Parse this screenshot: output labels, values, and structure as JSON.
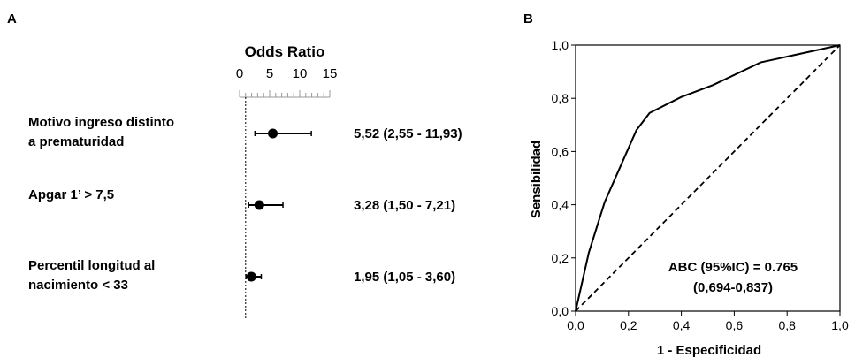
{
  "panels": {
    "a_label": "A",
    "b_label": "B"
  },
  "chart_data": [
    {
      "type": "forest",
      "title": "Odds Ratio",
      "xticks": [
        "0",
        "5",
        "10",
        "15"
      ],
      "xlim": [
        0,
        15
      ],
      "reference_line": 1,
      "rows": [
        {
          "label_lines": [
            "Motivo ingreso distinto",
            "a prematuridad"
          ],
          "or": 5.52,
          "ci_low": 2.55,
          "ci_high": 11.93,
          "text": "5,52 (2,55 - 11,93)"
        },
        {
          "label_lines": [
            "Apgar 1’ > 7,5"
          ],
          "or": 3.28,
          "ci_low": 1.5,
          "ci_high": 7.21,
          "text": "3,28 (1,50 - 7,21)"
        },
        {
          "label_lines": [
            "Percentil longitud al",
            "nacimiento < 33"
          ],
          "or": 1.95,
          "ci_low": 1.05,
          "ci_high": 3.6,
          "text": "1,95 (1,05 - 3,60)"
        }
      ]
    },
    {
      "type": "line",
      "subtype": "roc",
      "xlabel": "1 - Especificidad",
      "ylabel": "Sensibilidad",
      "xlim": [
        0,
        1
      ],
      "ylim": [
        0,
        1
      ],
      "xticks": [
        "0,0",
        "0,2",
        "0,4",
        "0,6",
        "0,8",
        "1,0"
      ],
      "yticks": [
        "0,0",
        "0,2",
        "0,4",
        "0,6",
        "0,8",
        "1,0"
      ],
      "roc_x": [
        0,
        0.05,
        0.11,
        0.23,
        0.28,
        0.4,
        0.52,
        0.7,
        1.0
      ],
      "roc_y": [
        0,
        0.22,
        0.41,
        0.68,
        0.745,
        0.805,
        0.85,
        0.935,
        1.0
      ],
      "diagonal_x": [
        0,
        1
      ],
      "diagonal_y": [
        0,
        1
      ],
      "annotation_lines": [
        "ABC (95%IC) = 0.765",
        "(0,694-0,837)"
      ]
    }
  ]
}
